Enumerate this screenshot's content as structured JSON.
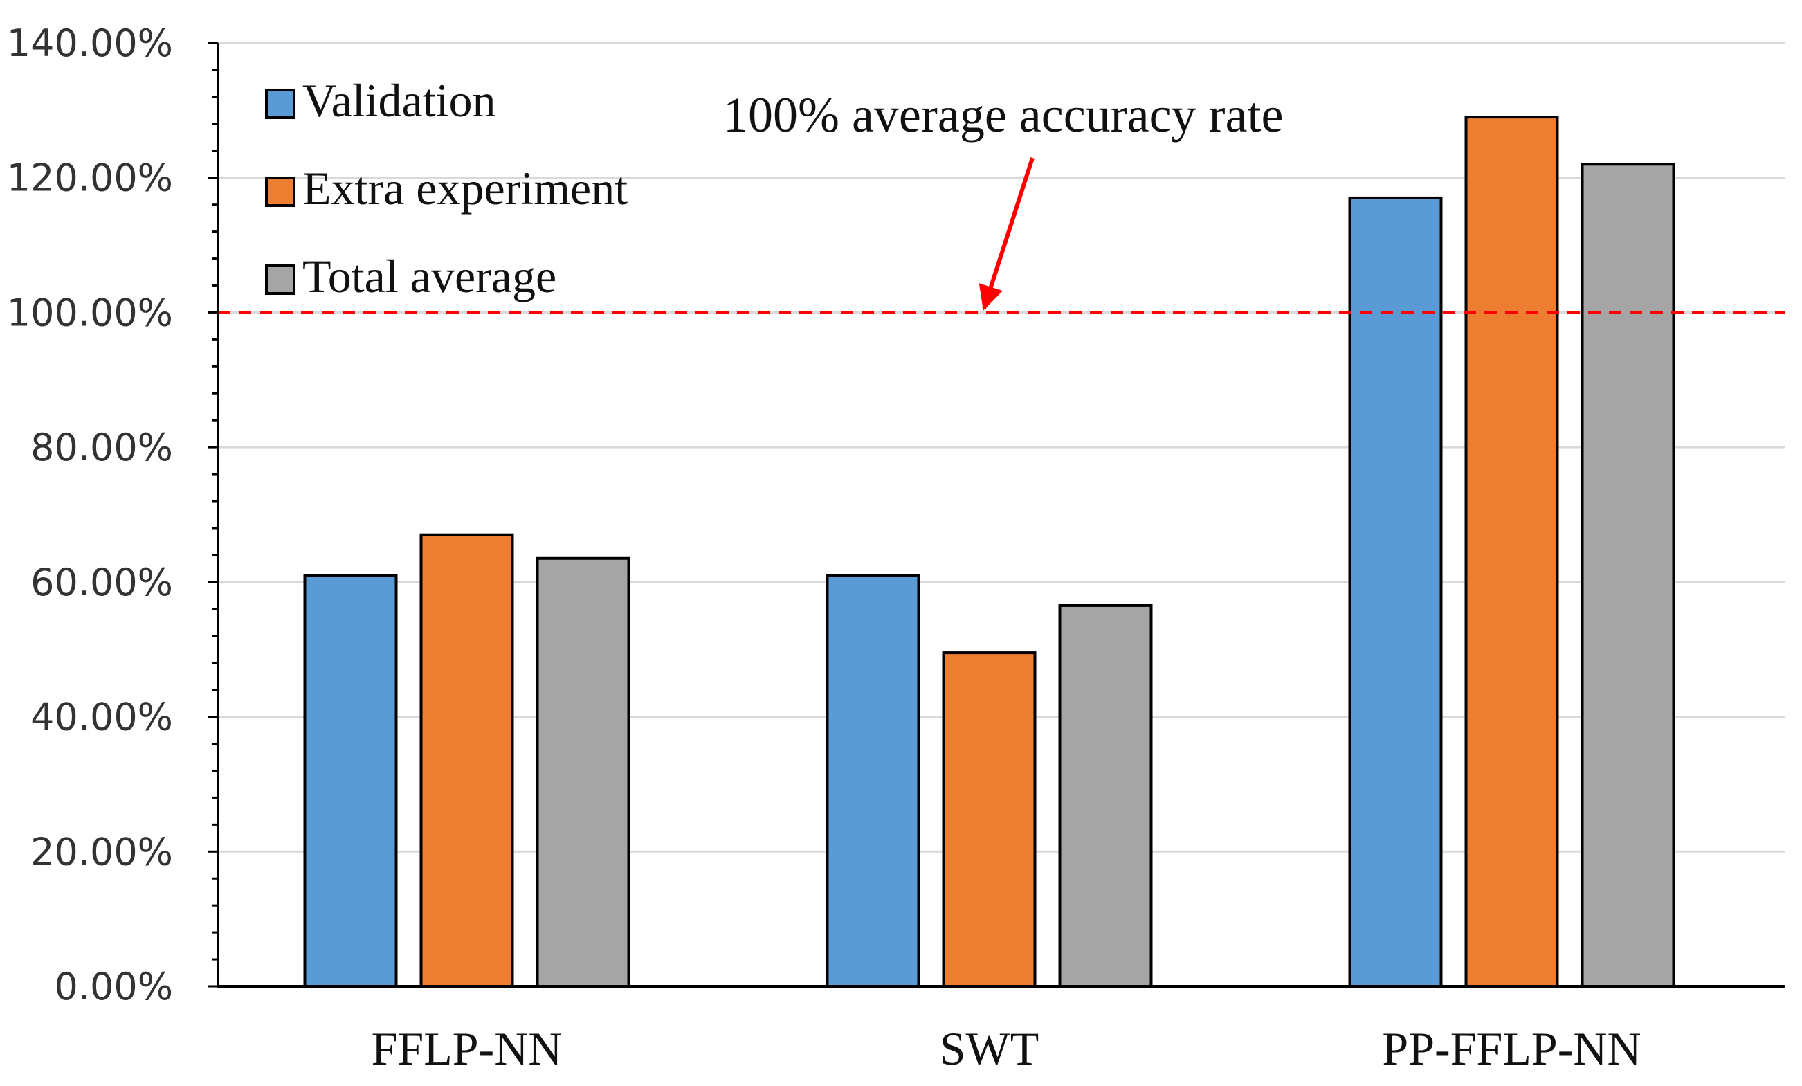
{
  "chart_data": {
    "type": "bar",
    "title": "",
    "xlabel": "",
    "ylabel": "",
    "ylim": [
      0,
      140
    ],
    "y_ticks": [
      0,
      20,
      40,
      60,
      80,
      100,
      120,
      140
    ],
    "y_tick_labels": [
      "0.00%",
      "20.00%",
      "40.00%",
      "60.00%",
      "80.00%",
      "100.00%",
      "120.00%",
      "140.00%"
    ],
    "y_unit": "%",
    "grid": true,
    "legend_position": "top-left",
    "categories": [
      "FFLP-NN",
      "SWT",
      "PP-FFLP-NN"
    ],
    "series": [
      {
        "name": "Validation",
        "color": "#5B9BD5",
        "values": [
          61,
          61,
          117
        ]
      },
      {
        "name": "Extra experiment",
        "color": "#ED7D31",
        "values": [
          67,
          49.5,
          129
        ]
      },
      {
        "name": "Total average",
        "color": "#A5A5A5",
        "values": [
          63.5,
          56.5,
          122
        ]
      }
    ],
    "reference_line": {
      "value": 100,
      "color": "#FF0000",
      "style": "dashed"
    },
    "annotation": {
      "text": "100% average accuracy rate",
      "arrow_color": "#FF0000"
    }
  }
}
